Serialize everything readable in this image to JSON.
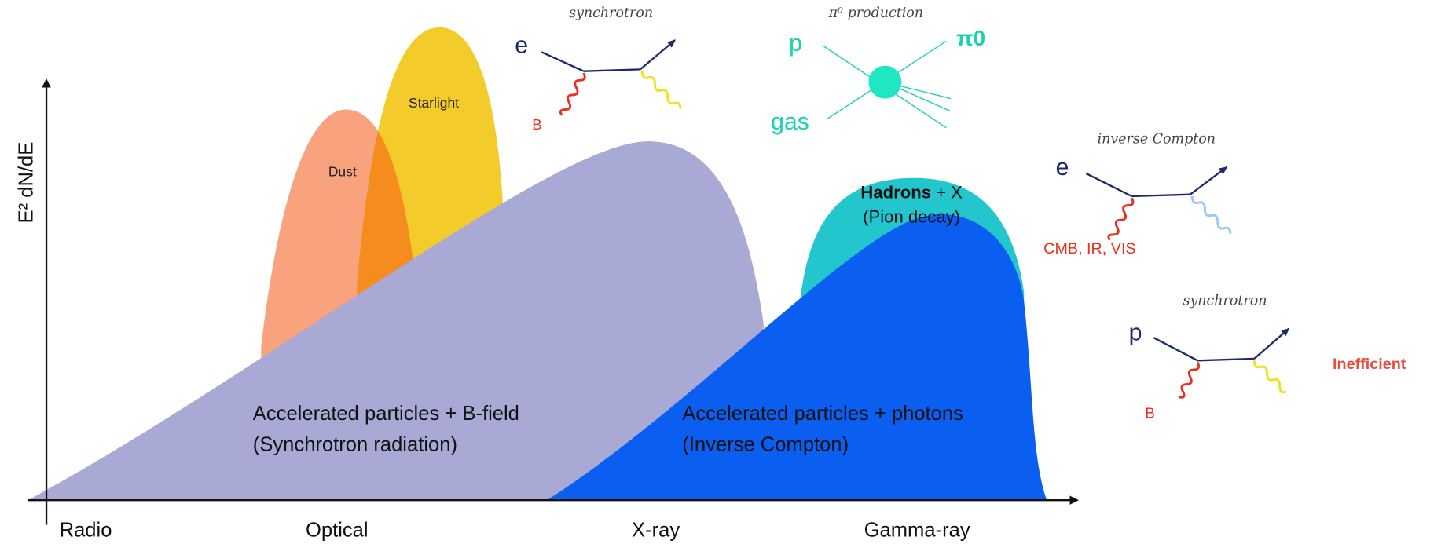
{
  "axes": {
    "y_label": "E² dN/dE",
    "x_labels": [
      "Radio",
      "Optical",
      "X-ray",
      "Gamma-ray"
    ]
  },
  "regions": {
    "dust": "Dust",
    "starlight": "Starlight",
    "hadrons": {
      "bold": "Hadrons",
      "rest": " + X",
      "line2": "(Pion decay)"
    },
    "synchrotron": {
      "line1": "Accelerated particles + B-field",
      "line2": "(Synchrotron radiation)"
    },
    "inverse_compton": {
      "line1": "Accelerated particles + photons",
      "line2": "(Inverse Compton)"
    }
  },
  "processes": [
    {
      "title": "synchrotron",
      "particle": "e",
      "field": "B"
    },
    {
      "title": "π⁰ production",
      "particle": "p",
      "target": "gas",
      "product": "π0"
    },
    {
      "title": "inverse Compton",
      "particle": "e",
      "field": "CMB, IR, VIS"
    },
    {
      "title": "synchrotron",
      "particle": "p",
      "field": "B",
      "note": "Inefficient"
    }
  ]
}
